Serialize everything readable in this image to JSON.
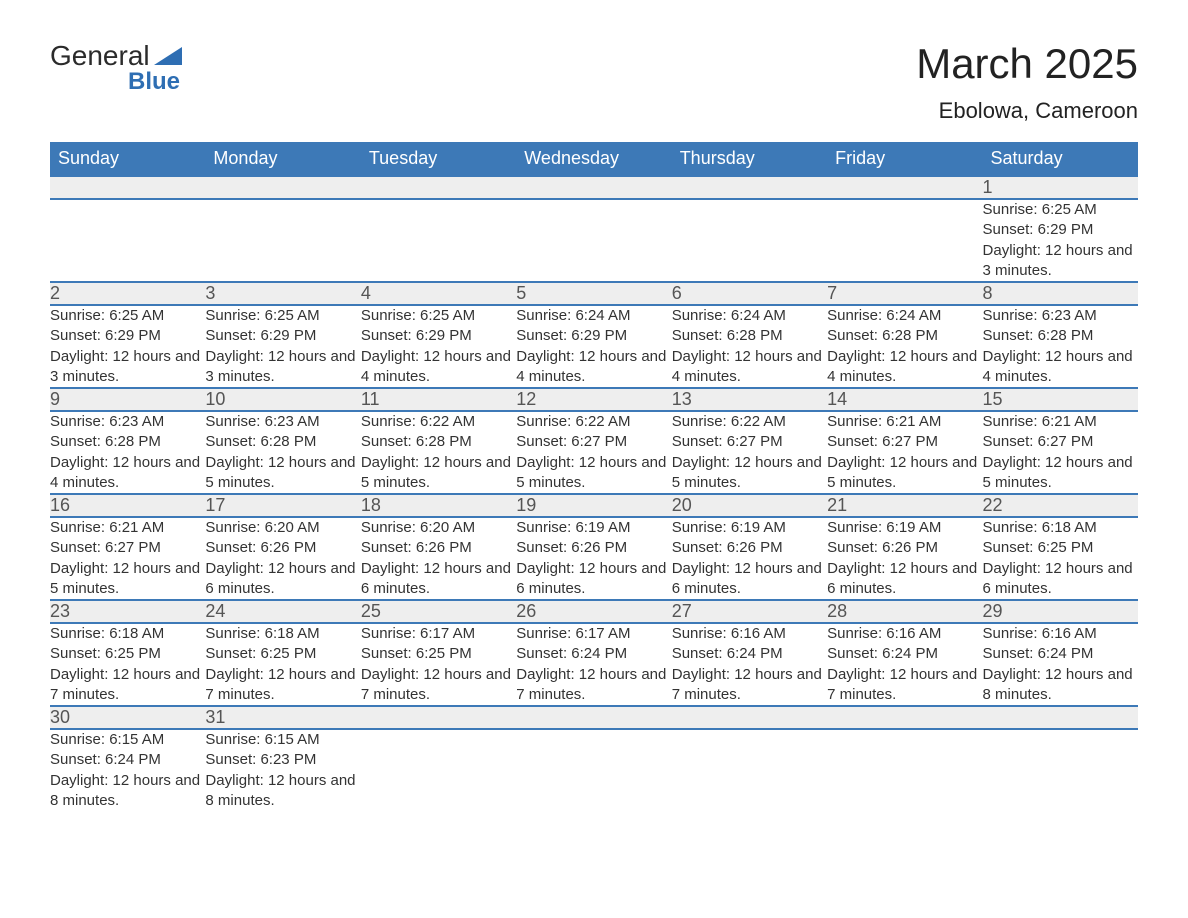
{
  "logo": {
    "word1": "General",
    "word2": "Blue"
  },
  "title": "March 2025",
  "subtitle": "Ebolowa, Cameroon",
  "header_bg": "#3d79b7",
  "header_fg": "#ffffff",
  "daynum_bg": "#eeeeee",
  "row_border": "#3d79b7",
  "text_color": "#333333",
  "columns": [
    "Sunday",
    "Monday",
    "Tuesday",
    "Wednesday",
    "Thursday",
    "Friday",
    "Saturday"
  ],
  "weeks": [
    [
      null,
      null,
      null,
      null,
      null,
      null,
      {
        "n": "1",
        "sunrise": "6:25 AM",
        "sunset": "6:29 PM",
        "dl": "12 hours and 3 minutes."
      }
    ],
    [
      {
        "n": "2",
        "sunrise": "6:25 AM",
        "sunset": "6:29 PM",
        "dl": "12 hours and 3 minutes."
      },
      {
        "n": "3",
        "sunrise": "6:25 AM",
        "sunset": "6:29 PM",
        "dl": "12 hours and 3 minutes."
      },
      {
        "n": "4",
        "sunrise": "6:25 AM",
        "sunset": "6:29 PM",
        "dl": "12 hours and 4 minutes."
      },
      {
        "n": "5",
        "sunrise": "6:24 AM",
        "sunset": "6:29 PM",
        "dl": "12 hours and 4 minutes."
      },
      {
        "n": "6",
        "sunrise": "6:24 AM",
        "sunset": "6:28 PM",
        "dl": "12 hours and 4 minutes."
      },
      {
        "n": "7",
        "sunrise": "6:24 AM",
        "sunset": "6:28 PM",
        "dl": "12 hours and 4 minutes."
      },
      {
        "n": "8",
        "sunrise": "6:23 AM",
        "sunset": "6:28 PM",
        "dl": "12 hours and 4 minutes."
      }
    ],
    [
      {
        "n": "9",
        "sunrise": "6:23 AM",
        "sunset": "6:28 PM",
        "dl": "12 hours and 4 minutes."
      },
      {
        "n": "10",
        "sunrise": "6:23 AM",
        "sunset": "6:28 PM",
        "dl": "12 hours and 5 minutes."
      },
      {
        "n": "11",
        "sunrise": "6:22 AM",
        "sunset": "6:28 PM",
        "dl": "12 hours and 5 minutes."
      },
      {
        "n": "12",
        "sunrise": "6:22 AM",
        "sunset": "6:27 PM",
        "dl": "12 hours and 5 minutes."
      },
      {
        "n": "13",
        "sunrise": "6:22 AM",
        "sunset": "6:27 PM",
        "dl": "12 hours and 5 minutes."
      },
      {
        "n": "14",
        "sunrise": "6:21 AM",
        "sunset": "6:27 PM",
        "dl": "12 hours and 5 minutes."
      },
      {
        "n": "15",
        "sunrise": "6:21 AM",
        "sunset": "6:27 PM",
        "dl": "12 hours and 5 minutes."
      }
    ],
    [
      {
        "n": "16",
        "sunrise": "6:21 AM",
        "sunset": "6:27 PM",
        "dl": "12 hours and 5 minutes."
      },
      {
        "n": "17",
        "sunrise": "6:20 AM",
        "sunset": "6:26 PM",
        "dl": "12 hours and 6 minutes."
      },
      {
        "n": "18",
        "sunrise": "6:20 AM",
        "sunset": "6:26 PM",
        "dl": "12 hours and 6 minutes."
      },
      {
        "n": "19",
        "sunrise": "6:19 AM",
        "sunset": "6:26 PM",
        "dl": "12 hours and 6 minutes."
      },
      {
        "n": "20",
        "sunrise": "6:19 AM",
        "sunset": "6:26 PM",
        "dl": "12 hours and 6 minutes."
      },
      {
        "n": "21",
        "sunrise": "6:19 AM",
        "sunset": "6:26 PM",
        "dl": "12 hours and 6 minutes."
      },
      {
        "n": "22",
        "sunrise": "6:18 AM",
        "sunset": "6:25 PM",
        "dl": "12 hours and 6 minutes."
      }
    ],
    [
      {
        "n": "23",
        "sunrise": "6:18 AM",
        "sunset": "6:25 PM",
        "dl": "12 hours and 7 minutes."
      },
      {
        "n": "24",
        "sunrise": "6:18 AM",
        "sunset": "6:25 PM",
        "dl": "12 hours and 7 minutes."
      },
      {
        "n": "25",
        "sunrise": "6:17 AM",
        "sunset": "6:25 PM",
        "dl": "12 hours and 7 minutes."
      },
      {
        "n": "26",
        "sunrise": "6:17 AM",
        "sunset": "6:24 PM",
        "dl": "12 hours and 7 minutes."
      },
      {
        "n": "27",
        "sunrise": "6:16 AM",
        "sunset": "6:24 PM",
        "dl": "12 hours and 7 minutes."
      },
      {
        "n": "28",
        "sunrise": "6:16 AM",
        "sunset": "6:24 PM",
        "dl": "12 hours and 7 minutes."
      },
      {
        "n": "29",
        "sunrise": "6:16 AM",
        "sunset": "6:24 PM",
        "dl": "12 hours and 8 minutes."
      }
    ],
    [
      {
        "n": "30",
        "sunrise": "6:15 AM",
        "sunset": "6:24 PM",
        "dl": "12 hours and 8 minutes."
      },
      {
        "n": "31",
        "sunrise": "6:15 AM",
        "sunset": "6:23 PM",
        "dl": "12 hours and 8 minutes."
      },
      null,
      null,
      null,
      null,
      null
    ]
  ],
  "labels": {
    "sunrise": "Sunrise: ",
    "sunset": "Sunset: ",
    "daylight": "Daylight: "
  }
}
